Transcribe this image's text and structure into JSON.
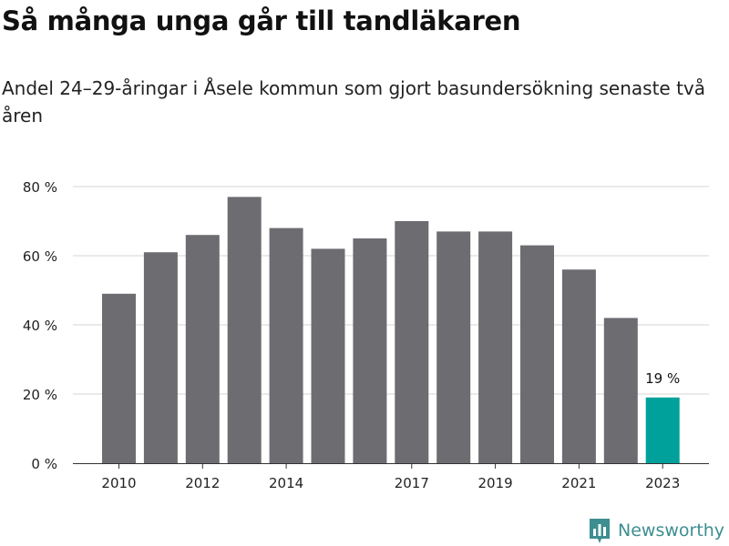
{
  "header": {
    "title": "Så många unga går till tandläkaren",
    "subtitle": "Andel 24–29-åringar i Åsele kommun som gjort basundersökning senaste två åren"
  },
  "brand": {
    "name": "Newsworthy",
    "icon": "bar-chart-logo-icon",
    "color": "#3d8e91"
  },
  "colors": {
    "bar": "#6d6c71",
    "highlight": "#00a19a",
    "grid": "#d6d6d6",
    "text": "#222222"
  },
  "chart_data": {
    "type": "bar",
    "title": "Så många unga går till tandläkaren",
    "subtitle": "Andel 24–29-åringar i Åsele kommun som gjort basundersökning senaste två åren",
    "categories": [
      "2010",
      "2011",
      "2012",
      "2013",
      "2014",
      "2015",
      "2016",
      "2017",
      "2018",
      "2019",
      "2020",
      "2021",
      "2022",
      "2023"
    ],
    "values": [
      49,
      61,
      66,
      77,
      68,
      62,
      65,
      70,
      67,
      67,
      63,
      56,
      42,
      19
    ],
    "unit": "%",
    "ylim": [
      0,
      80
    ],
    "yticks": [
      0,
      20,
      40,
      60,
      80
    ],
    "ytick_labels": [
      "0 %",
      "20 %",
      "40 %",
      "60 %",
      "80 %"
    ],
    "xtick_labels": [
      "2010",
      "2012",
      "2014",
      "2017",
      "2019",
      "2021",
      "2023"
    ],
    "highlight_index": 13,
    "annotations": [
      {
        "category": "2023",
        "text": "19 %"
      }
    ],
    "grid": true,
    "legend": "none"
  }
}
